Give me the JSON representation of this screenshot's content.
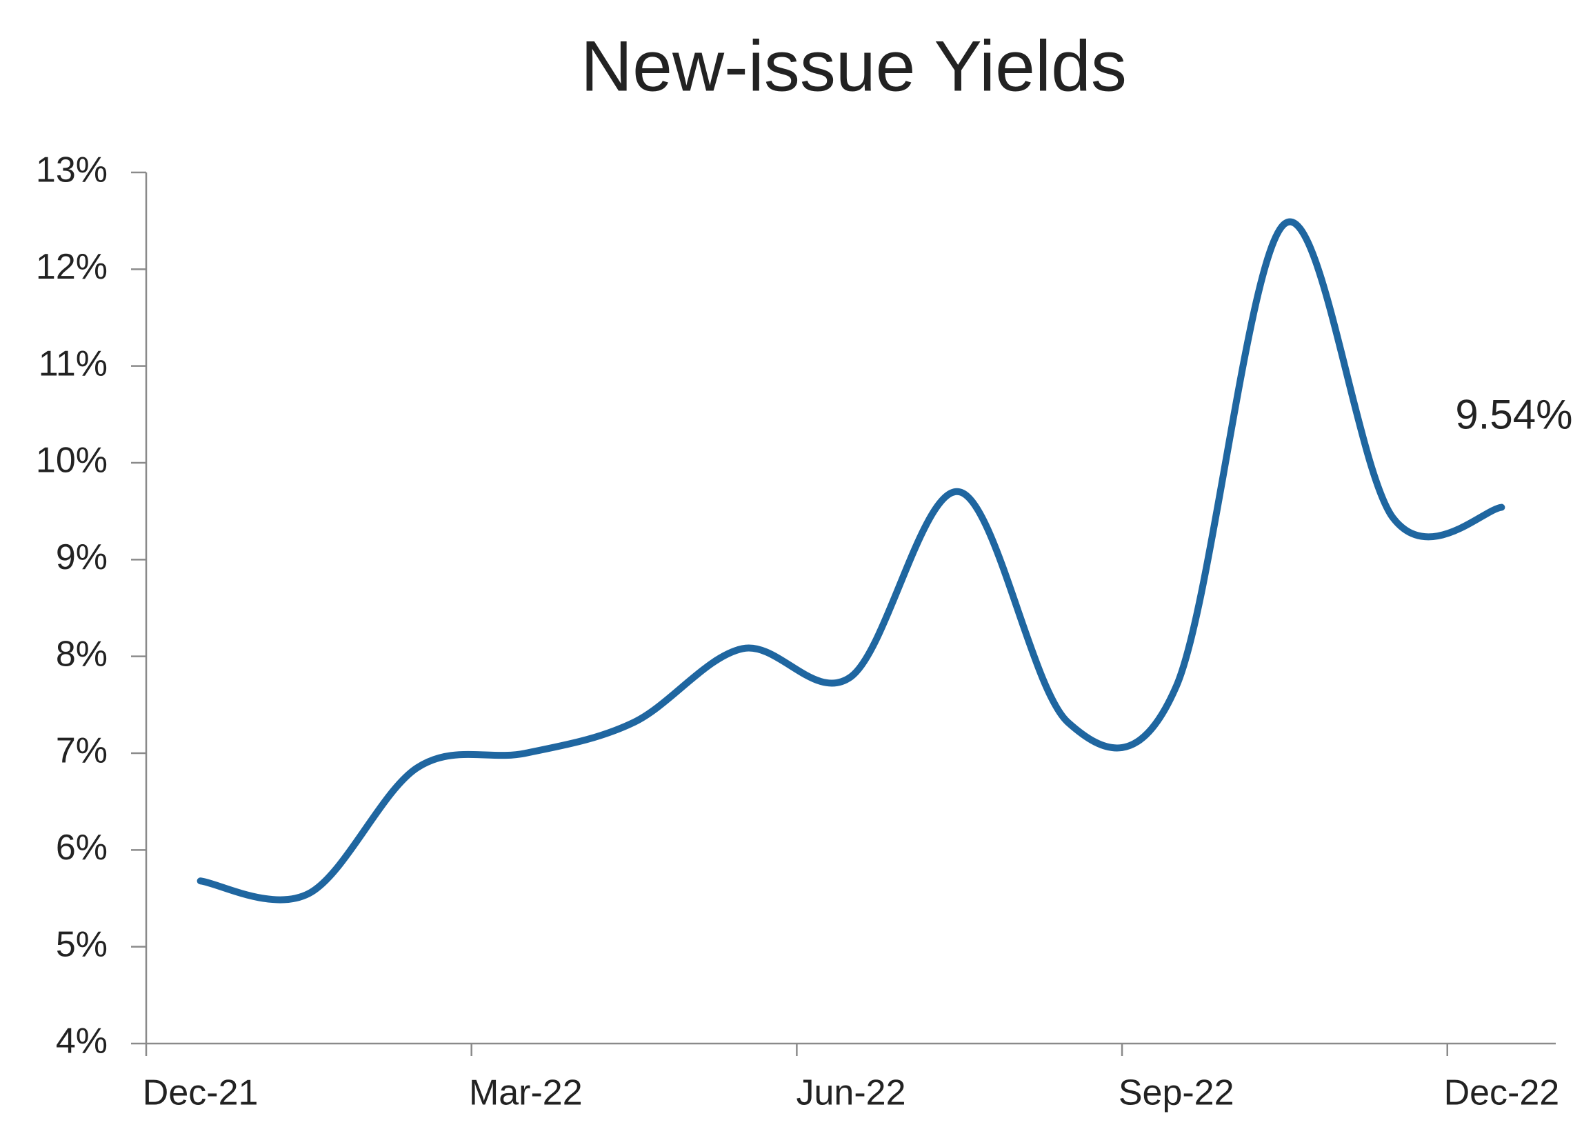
{
  "chart_data": {
    "type": "line",
    "title": "New-issue Yields",
    "categories": [
      "Dec-21",
      null,
      null,
      "Mar-22",
      null,
      null,
      "Jun-22",
      null,
      null,
      "Sep-22",
      null,
      null,
      "Dec-22"
    ],
    "series": [
      {
        "name": "New-issue Yields",
        "color": "#1f66a0",
        "values": [
          5.68,
          5.55,
          6.85,
          7.0,
          7.32,
          8.08,
          7.79,
          9.7,
          7.32,
          7.69,
          12.47,
          9.43,
          9.54
        ],
        "value_labels": [
          null,
          null,
          null,
          null,
          null,
          null,
          null,
          null,
          null,
          null,
          null,
          null,
          "9.54%"
        ]
      }
    ],
    "ylim": [
      4,
      13
    ],
    "yticks": [
      {
        "value": 4,
        "label": "4%"
      },
      {
        "value": 5,
        "label": "5%"
      },
      {
        "value": 6,
        "label": "6%"
      },
      {
        "value": 7,
        "label": "7%"
      },
      {
        "value": 8,
        "label": "8%"
      },
      {
        "value": 9,
        "label": "9%"
      },
      {
        "value": 10,
        "label": "10%"
      },
      {
        "value": 11,
        "label": "11%"
      },
      {
        "value": 12,
        "label": "12%"
      },
      {
        "value": 13,
        "label": "13%"
      }
    ],
    "smooth": true,
    "grid": false
  }
}
